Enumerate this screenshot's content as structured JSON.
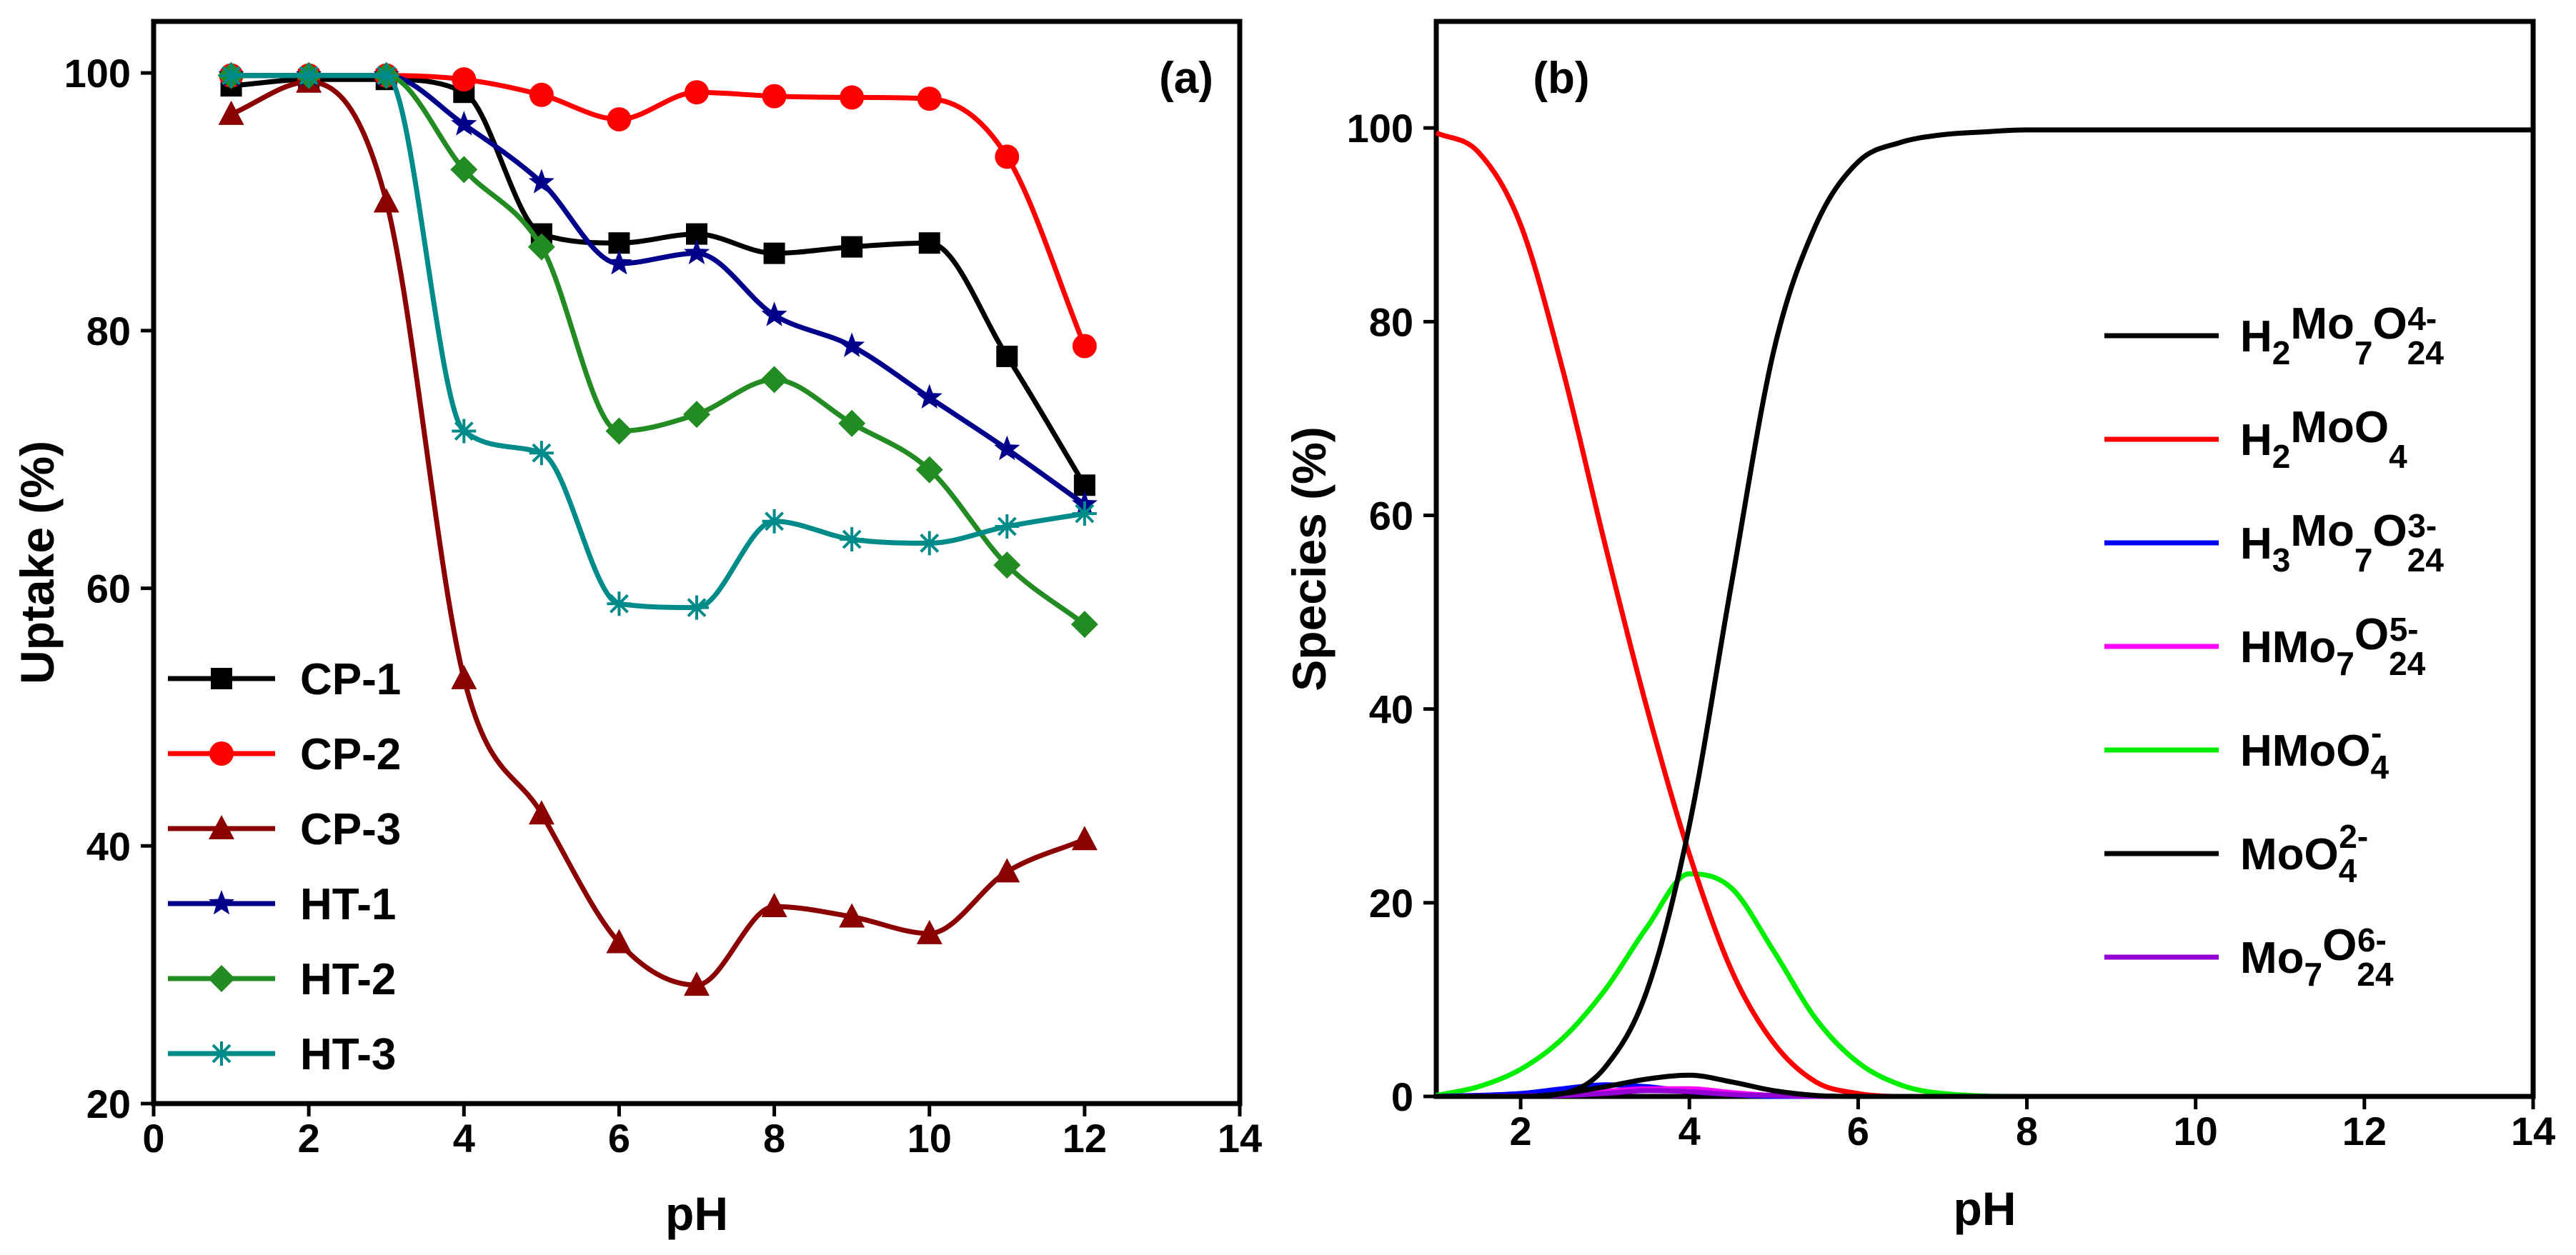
{
  "chart_data": [
    {
      "type": "line",
      "panel_label": "(a)",
      "xlabel": "pH",
      "ylabel": "Uptake (%)",
      "xlim": [
        0,
        14
      ],
      "ylim": [
        20,
        104
      ],
      "x_ticks": [
        0,
        2,
        4,
        6,
        8,
        10,
        12,
        14
      ],
      "y_ticks": [
        20,
        40,
        60,
        80,
        100
      ],
      "grid": false,
      "legend_position": "bottom-left",
      "series": [
        {
          "name": "CP-1",
          "color": "#000000",
          "marker": "square",
          "x": [
            1,
            2,
            3,
            4,
            5,
            6,
            7,
            8,
            9,
            10,
            11,
            12
          ],
          "y": [
            99,
            99.5,
            99.5,
            98.5,
            87.5,
            86.8,
            87.5,
            86,
            86.5,
            86.8,
            78,
            68
          ]
        },
        {
          "name": "CP-2",
          "color": "#ff0000",
          "marker": "circle",
          "x": [
            1,
            2,
            3,
            4,
            5,
            6,
            7,
            8,
            9,
            10,
            11,
            12
          ],
          "y": [
            99.8,
            99.8,
            99.8,
            99.5,
            98.3,
            96.4,
            98.5,
            98.2,
            98.1,
            98,
            93.5,
            78.8
          ]
        },
        {
          "name": "CP-3",
          "color": "#8b0000",
          "marker": "triangle",
          "x": [
            1,
            2,
            3,
            4,
            5,
            6,
            7,
            8,
            9,
            10,
            11,
            12
          ],
          "y": [
            96.8,
            99.3,
            90,
            53,
            42.5,
            32.5,
            29.2,
            35.3,
            34.5,
            33.2,
            38,
            40.5
          ]
        },
        {
          "name": "HT-1",
          "color": "#00008b",
          "marker": "star",
          "x": [
            1,
            2,
            3,
            4,
            5,
            6,
            7,
            8,
            9,
            10,
            11,
            12
          ],
          "y": [
            99.8,
            99.8,
            99.8,
            96,
            91.5,
            85.2,
            86,
            81.2,
            78.8,
            74.8,
            70.8,
            66.5
          ]
        },
        {
          "name": "HT-2",
          "color": "#228b22",
          "marker": "diamond",
          "x": [
            1,
            2,
            3,
            4,
            5,
            6,
            7,
            8,
            9,
            10,
            11,
            12
          ],
          "y": [
            99.8,
            99.8,
            99.8,
            92.5,
            86.5,
            72.2,
            73.5,
            76.2,
            72.8,
            69.2,
            61.8,
            57.2
          ]
        },
        {
          "name": "HT-3",
          "color": "#008b8b",
          "marker": "asterisk",
          "x": [
            1,
            2,
            3,
            4,
            5,
            6,
            7,
            8,
            9,
            10,
            11,
            12
          ],
          "y": [
            99.8,
            99.8,
            99.8,
            72.2,
            70.5,
            58.8,
            58.5,
            65.2,
            63.8,
            63.5,
            64.8,
            65.8
          ]
        }
      ]
    },
    {
      "type": "line",
      "panel_label": "(b)",
      "xlabel": "pH",
      "ylabel": "Species (%)",
      "xlim": [
        1,
        14
      ],
      "ylim": [
        0,
        111
      ],
      "x_ticks": [
        2,
        4,
        6,
        8,
        10,
        12,
        14
      ],
      "y_ticks": [
        0,
        20,
        40,
        60,
        80,
        100
      ],
      "grid": false,
      "legend_position": "right",
      "series": [
        {
          "name": "H2Mo7O24 4-",
          "color": "#000000",
          "x": [
            1,
            2,
            2.5,
            3,
            3.5,
            4,
            4.5,
            5,
            5.5,
            6,
            6.5,
            7,
            8,
            10,
            14
          ],
          "y": [
            0,
            0,
            0.3,
            1,
            1.8,
            2.2,
            1.5,
            0.6,
            0.1,
            0,
            0,
            0,
            0,
            0,
            0
          ]
        },
        {
          "name": "H2MoO4",
          "color": "#ff0000",
          "x": [
            1,
            1.5,
            2,
            2.5,
            3,
            3.5,
            4,
            4.5,
            5,
            5.5,
            6,
            6.5,
            7,
            8,
            14
          ],
          "y": [
            99.5,
            97.5,
            90,
            75,
            57,
            40,
            25,
            13,
            5.5,
            1.5,
            0.3,
            0,
            0,
            0,
            0
          ]
        },
        {
          "name": "H3Mo7O24 3-",
          "color": "#0000ff",
          "x": [
            1,
            2,
            2.5,
            3,
            3.5,
            4,
            4.5,
            5,
            6,
            14
          ],
          "y": [
            0,
            0.3,
            0.8,
            1.2,
            1,
            0.5,
            0.2,
            0,
            0,
            0
          ]
        },
        {
          "name": "HMo7O24 5-",
          "color": "#ff00ff",
          "x": [
            1,
            2.5,
            3,
            3.5,
            4,
            4.5,
            5,
            6,
            14
          ],
          "y": [
            0,
            0.1,
            0.5,
            0.8,
            0.8,
            0.4,
            0.1,
            0,
            0
          ]
        },
        {
          "name": "HMoO4 -",
          "color": "#00ee00",
          "x": [
            1,
            1.5,
            2,
            2.5,
            3,
            3.5,
            4,
            4.5,
            5,
            5.5,
            6,
            6.5,
            7,
            8,
            10,
            14
          ],
          "y": [
            0.1,
            1,
            2.8,
            6,
            11,
            17.5,
            23,
            21.5,
            15,
            8,
            3.5,
            1.2,
            0.3,
            0,
            0,
            0
          ]
        },
        {
          "name": "MoO4 2-",
          "color": "#000000",
          "x": [
            1,
            2,
            2.5,
            3,
            3.5,
            4,
            4.5,
            5,
            5.5,
            6,
            6.5,
            7,
            7.5,
            8,
            10,
            14
          ],
          "y": [
            0,
            0,
            0.3,
            3,
            11,
            28,
            53,
            77,
            90,
            96.5,
            98.5,
            99.3,
            99.6,
            99.8,
            99.8,
            99.8
          ]
        },
        {
          "name": "Mo7O24 6-",
          "color": "#9400d3",
          "x": [
            1,
            2.5,
            3,
            3.5,
            4,
            4.5,
            5,
            6,
            14
          ],
          "y": [
            0,
            0.1,
            0.3,
            0.6,
            0.5,
            0.2,
            0.1,
            0,
            0
          ]
        }
      ]
    }
  ],
  "legend_b": [
    {
      "base": "H",
      "sub1": "2",
      "mid": "Mo",
      "sub2": "7",
      "tail": "O",
      "sub3": "24",
      "sup": "4-",
      "color": "#000000"
    },
    {
      "base": "H",
      "sub1": "2",
      "mid": "MoO",
      "sub2": "4",
      "tail": "",
      "sub3": "",
      "sup": "",
      "color": "#ff0000"
    },
    {
      "base": "H",
      "sub1": "3",
      "mid": "Mo",
      "sub2": "7",
      "tail": "O",
      "sub3": "24",
      "sup": "3-",
      "color": "#0000ff"
    },
    {
      "base": "HMo",
      "sub1": "7",
      "mid": "O",
      "sub2": "24",
      "tail": "",
      "sub3": "",
      "sup": "5-",
      "color": "#ff00ff"
    },
    {
      "base": "HMoO",
      "sub1": "4",
      "mid": "",
      "sub2": "",
      "tail": "",
      "sub3": "",
      "sup": "-",
      "color": "#00ee00"
    },
    {
      "base": "MoO",
      "sub1": "4",
      "mid": "",
      "sub2": "",
      "tail": "",
      "sub3": "",
      "sup": "2-",
      "color": "#000000"
    },
    {
      "base": "Mo",
      "sub1": "7",
      "mid": "O",
      "sub2": "24",
      "tail": "",
      "sub3": "",
      "sup": "6-",
      "color": "#9400d3"
    }
  ]
}
